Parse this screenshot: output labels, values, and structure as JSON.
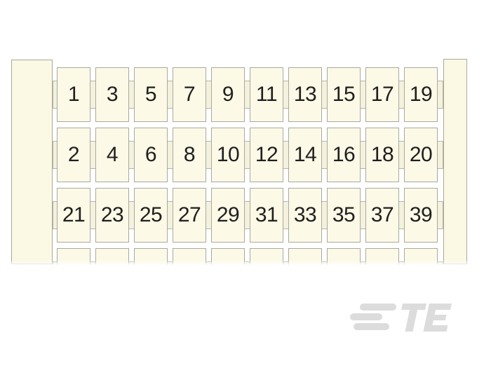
{
  "background_color": "#ffffff",
  "product": {
    "description": "terminal-block-marker-strip",
    "colors": {
      "tag_fill": "#fcf9e6",
      "rail_fill": "#fbf8e3",
      "strip_fill": "#f4f1dd",
      "border": "#aaa89d",
      "strip_border": "#b7b5a9",
      "number_color": "#1f1f1f"
    },
    "rows": [
      {
        "labels": [
          "1",
          "3",
          "5",
          "7",
          "9",
          "11",
          "13",
          "15",
          "17",
          "19"
        ]
      },
      {
        "labels": [
          "2",
          "4",
          "6",
          "8",
          "10",
          "12",
          "14",
          "16",
          "18",
          "20"
        ]
      },
      {
        "labels": [
          "21",
          "23",
          "25",
          "27",
          "29",
          "31",
          "33",
          "35",
          "37",
          "39"
        ]
      },
      {
        "labels": [
          "",
          "",
          "",
          "",
          "",
          "",
          "",
          "",
          "",
          ""
        ]
      }
    ]
  },
  "watermark": {
    "logo_text": "TE",
    "color": "#dcdcdc"
  }
}
